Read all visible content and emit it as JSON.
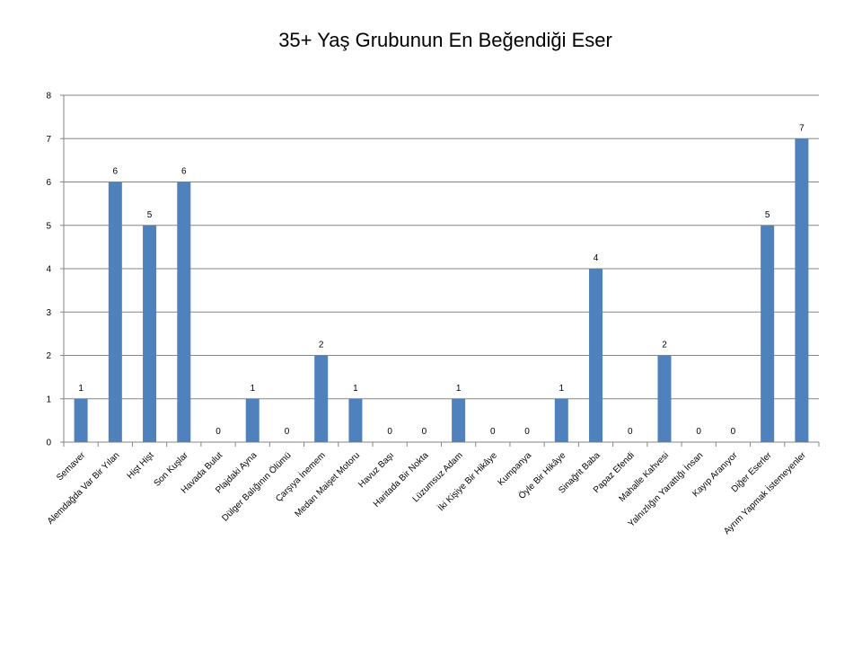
{
  "chart_data": {
    "type": "bar",
    "title": "35+ Yaş Grubunun En Beğendiği Eser",
    "xlabel": "",
    "ylabel": "",
    "ylim": [
      0,
      8
    ],
    "yticks": [
      "0",
      "1",
      "2",
      "3",
      "4",
      "5",
      "6",
      "7",
      "8"
    ],
    "grid": true,
    "legend": "none",
    "bar_color": "#4F81BD",
    "categories": [
      "Semaver",
      "Alemdağda Var Bir Yılan",
      "Hişt Hişt",
      "Son Kuşlar",
      "Havada Bulut",
      "Plajdaki Ayna",
      "Dülger Balığının Ölümü",
      "Çarşıya İnemem",
      "Medarı Maişet Motoru",
      "Havuz Başı",
      "Haritada Bir Nokta",
      "Lüzumsuz Adam",
      "İki Kişiye Bir Hikâye",
      "Kumpanya",
      "Öyle Bir Hikâye",
      "Sinağrit Baba",
      "Papaz Efendi",
      "Mahalle Kahvesi",
      "Yalnızlığın Yarattığı İnsan",
      "Kayıp Aranıyor",
      "Diğer Eserler",
      "Ayrım Yapmak İstemeyenler"
    ],
    "values": [
      1,
      6,
      5,
      6,
      0,
      1,
      0,
      2,
      1,
      0,
      0,
      1,
      0,
      0,
      1,
      4,
      0,
      2,
      0,
      0,
      5,
      7
    ]
  }
}
